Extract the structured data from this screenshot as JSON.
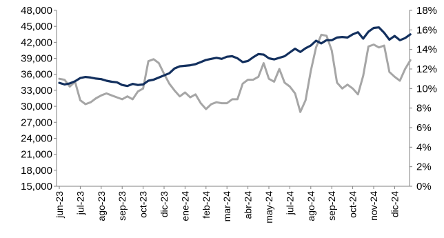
{
  "chart_data": {
    "type": "line",
    "title": "",
    "xlabel": "",
    "ylabel": "",
    "y_left": {
      "lim": [
        15000,
        48000
      ],
      "ticks": [
        "15,000",
        "18,000",
        "21,000",
        "24,000",
        "27,000",
        "30,000",
        "33,000",
        "36,000",
        "39,000",
        "42,000",
        "45,000",
        "48,000"
      ]
    },
    "y_right": {
      "lim": [
        0,
        18
      ],
      "unit": "%",
      "ticks": [
        "0%",
        "2%",
        "4%",
        "6%",
        "8%",
        "10%",
        "12%",
        "14%",
        "16%",
        "18%"
      ]
    },
    "x_ticks": [
      "jun-23",
      "jul-23",
      "ago-23",
      "sep-23",
      "oct-23",
      "dic-23",
      "ene-24",
      "feb-24",
      "mar-24",
      "abr-24",
      "may-24",
      "jul-24",
      "ago-24",
      "sep-24",
      "oct-24",
      "nov-24",
      "dic-24"
    ],
    "grid": false,
    "legend": "none",
    "series": [
      {
        "axis": "left",
        "color": "#13305e",
        "points": [
          [
            0.0,
            34400
          ],
          [
            0.25,
            34100
          ],
          [
            0.5,
            34300
          ],
          [
            0.75,
            34700
          ],
          [
            1.0,
            35300
          ],
          [
            1.25,
            35500
          ],
          [
            1.5,
            35400
          ],
          [
            1.75,
            35200
          ],
          [
            2.0,
            35100
          ],
          [
            2.25,
            34800
          ],
          [
            2.5,
            34600
          ],
          [
            2.75,
            34500
          ],
          [
            3.0,
            34000
          ],
          [
            3.25,
            33800
          ],
          [
            3.5,
            34200
          ],
          [
            3.75,
            34000
          ],
          [
            4.0,
            34100
          ],
          [
            4.25,
            34800
          ],
          [
            4.5,
            35000
          ],
          [
            4.75,
            35400
          ],
          [
            5.0,
            35800
          ],
          [
            5.25,
            36200
          ],
          [
            5.5,
            37100
          ],
          [
            5.75,
            37500
          ],
          [
            6.0,
            37600
          ],
          [
            6.25,
            37700
          ],
          [
            6.5,
            37900
          ],
          [
            6.75,
            38300
          ],
          [
            7.0,
            38700
          ],
          [
            7.25,
            38900
          ],
          [
            7.5,
            39100
          ],
          [
            7.75,
            38900
          ],
          [
            8.0,
            39300
          ],
          [
            8.25,
            39400
          ],
          [
            8.5,
            39000
          ],
          [
            8.75,
            38300
          ],
          [
            9.0,
            38500
          ],
          [
            9.25,
            39200
          ],
          [
            9.5,
            39800
          ],
          [
            9.75,
            39700
          ],
          [
            10.0,
            39000
          ],
          [
            10.25,
            38800
          ],
          [
            10.5,
            39100
          ],
          [
            10.75,
            39400
          ],
          [
            11.0,
            40100
          ],
          [
            11.25,
            40800
          ],
          [
            11.5,
            40200
          ],
          [
            11.75,
            40900
          ],
          [
            12.0,
            41400
          ],
          [
            12.25,
            42300
          ],
          [
            12.5,
            41800
          ],
          [
            12.75,
            42400
          ],
          [
            13.0,
            42400
          ],
          [
            13.25,
            42900
          ],
          [
            13.5,
            43000
          ],
          [
            13.75,
            42900
          ],
          [
            14.0,
            43500
          ],
          [
            14.25,
            43900
          ],
          [
            14.5,
            42700
          ],
          [
            14.75,
            44000
          ],
          [
            15.0,
            44700
          ],
          [
            15.25,
            44800
          ],
          [
            15.5,
            43800
          ],
          [
            15.75,
            42500
          ],
          [
            16.0,
            43200
          ],
          [
            16.25,
            42400
          ],
          [
            16.5,
            42800
          ],
          [
            16.75,
            43500
          ]
        ]
      },
      {
        "axis": "right",
        "color": "#a6a6a6",
        "points": [
          [
            0.0,
            11.0
          ],
          [
            0.25,
            10.9
          ],
          [
            0.5,
            10.2
          ],
          [
            0.75,
            10.7
          ],
          [
            1.0,
            8.8
          ],
          [
            1.25,
            8.4
          ],
          [
            1.5,
            8.6
          ],
          [
            1.75,
            9.0
          ],
          [
            2.0,
            9.3
          ],
          [
            2.25,
            9.5
          ],
          [
            2.5,
            9.3
          ],
          [
            2.75,
            9.1
          ],
          [
            3.0,
            8.9
          ],
          [
            3.25,
            9.2
          ],
          [
            3.5,
            8.9
          ],
          [
            3.75,
            9.7
          ],
          [
            4.0,
            10.0
          ],
          [
            4.25,
            12.8
          ],
          [
            4.5,
            13.0
          ],
          [
            4.75,
            12.6
          ],
          [
            5.0,
            11.5
          ],
          [
            5.25,
            10.5
          ],
          [
            5.5,
            9.8
          ],
          [
            5.75,
            9.2
          ],
          [
            6.0,
            9.6
          ],
          [
            6.25,
            9.1
          ],
          [
            6.5,
            9.4
          ],
          [
            6.75,
            8.5
          ],
          [
            7.0,
            7.9
          ],
          [
            7.25,
            8.4
          ],
          [
            7.5,
            8.6
          ],
          [
            7.75,
            8.5
          ],
          [
            8.0,
            8.5
          ],
          [
            8.25,
            8.9
          ],
          [
            8.5,
            8.9
          ],
          [
            8.75,
            10.5
          ],
          [
            9.0,
            10.9
          ],
          [
            9.25,
            10.9
          ],
          [
            9.5,
            11.2
          ],
          [
            9.75,
            12.6
          ],
          [
            10.0,
            11.0
          ],
          [
            10.25,
            10.7
          ],
          [
            10.5,
            12.0
          ],
          [
            10.75,
            10.6
          ],
          [
            11.0,
            10.2
          ],
          [
            11.25,
            9.5
          ],
          [
            11.5,
            7.6
          ],
          [
            11.75,
            8.8
          ],
          [
            12.0,
            11.8
          ],
          [
            12.25,
            14.2
          ],
          [
            12.5,
            15.5
          ],
          [
            12.75,
            15.4
          ],
          [
            13.0,
            13.9
          ],
          [
            13.25,
            10.6
          ],
          [
            13.5,
            10.0
          ],
          [
            13.75,
            10.4
          ],
          [
            14.0,
            10.0
          ],
          [
            14.25,
            9.4
          ],
          [
            14.5,
            11.3
          ],
          [
            14.75,
            14.3
          ],
          [
            15.0,
            14.5
          ],
          [
            15.25,
            14.2
          ],
          [
            15.5,
            14.4
          ],
          [
            15.75,
            11.7
          ],
          [
            16.0,
            11.2
          ],
          [
            16.25,
            10.8
          ],
          [
            16.5,
            12.0
          ],
          [
            16.75,
            12.9
          ]
        ]
      }
    ]
  }
}
